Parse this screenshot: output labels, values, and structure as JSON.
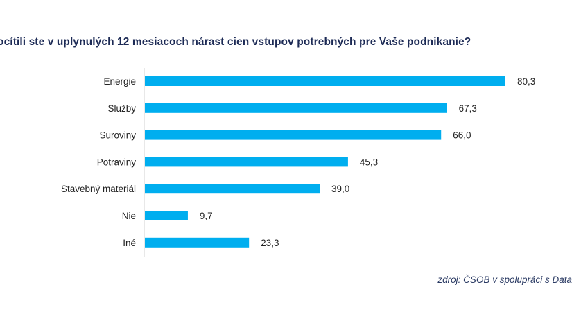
{
  "chart_data": {
    "type": "bar",
    "orientation": "horizontal",
    "title": "ocítili ste v uplynulých 12 mesiacoch nárast cien vstupov potrebných pre Vaše podnikanie?",
    "categories": [
      "Energie",
      "Služby",
      "Suroviny",
      "Potraviny",
      "Stavebný materiál",
      "Nie",
      "Iné"
    ],
    "values": [
      80.3,
      67.3,
      66.0,
      45.3,
      39.0,
      9.7,
      23.3
    ],
    "value_labels": [
      "80,3",
      "67,3",
      "66,0",
      "45,3",
      "39,0",
      "9,7",
      "23,3"
    ],
    "xlim": [
      0,
      80.3
    ],
    "grid": false,
    "bar_color": "#00aeef",
    "source": "zdroj: ČSOB v spolupráci s Data"
  }
}
